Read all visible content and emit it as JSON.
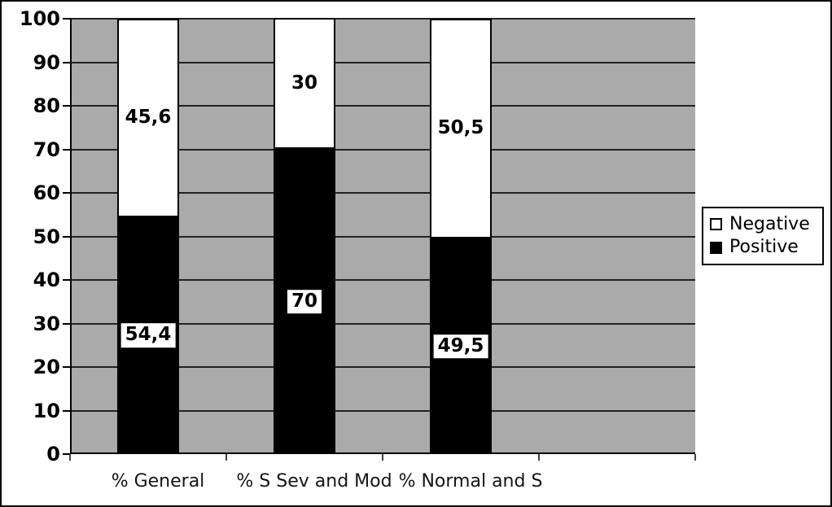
{
  "figure": {
    "background": "#ffffff",
    "plot_background": "#aaaaaa",
    "border_color": "#000000",
    "gridline_color": "#222222"
  },
  "legend": {
    "position": "right",
    "items": [
      {
        "label": "Negative",
        "swatch": "#ffffff",
        "swatch_border": "#000000"
      },
      {
        "label": "Positive",
        "swatch": "#000000",
        "swatch_border": "#000000"
      }
    ]
  },
  "chart_data": {
    "type": "bar",
    "stacked": true,
    "title": "",
    "xlabel": "",
    "ylabel": "",
    "categories": [
      "% General",
      "% S Sev and Mod",
      "% Normal and S"
    ],
    "series": [
      {
        "name": "Positive",
        "color": "#000000",
        "values": [
          54.4,
          70,
          49.5
        ],
        "data_labels": [
          "54,4",
          "70",
          "49,5"
        ],
        "label_chip": true
      },
      {
        "name": "Negative",
        "color": "#ffffff",
        "values": [
          45.6,
          30,
          50.5
        ],
        "data_labels": [
          "45,6",
          "30",
          "50,5"
        ],
        "label_chip": false
      }
    ],
    "ylim": [
      0,
      100
    ],
    "yticks": [
      0,
      10,
      20,
      30,
      40,
      50,
      60,
      70,
      80,
      90,
      100
    ],
    "grid": "horizontal",
    "category_slots": 4,
    "legend_position": "right"
  }
}
